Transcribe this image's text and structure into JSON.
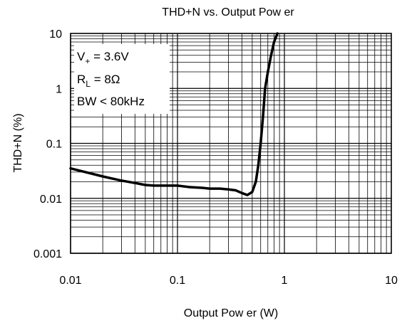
{
  "chart_data": {
    "type": "line",
    "title": "THD+N vs. Output Pow er",
    "xlabel": "Output Pow er (W)",
    "ylabel": "THD+N (%)",
    "xscale": "log",
    "yscale": "log",
    "xlim": [
      0.01,
      10
    ],
    "ylim": [
      0.001,
      10
    ],
    "grid": true,
    "x_ticks": [
      "0.01",
      "0.1",
      "1",
      "10"
    ],
    "y_ticks": [
      "10",
      "1",
      "0.1",
      "0.01",
      "0.001"
    ],
    "annotations": [
      {
        "main": "V",
        "sub": "+",
        "rest": " = 3.6V"
      },
      {
        "main": "R",
        "sub": "L",
        "rest": " = 8Ω"
      },
      {
        "main": "BW < 80kHz",
        "sub": "",
        "rest": ""
      }
    ],
    "series": [
      {
        "x": [
          0.01,
          0.02,
          0.03,
          0.04,
          0.05,
          0.06,
          0.08,
          0.1,
          0.13,
          0.17,
          0.2,
          0.25,
          0.3,
          0.35,
          0.4,
          0.45,
          0.5,
          0.54,
          0.57,
          0.6,
          0.63,
          0.66,
          0.7,
          0.75,
          0.8,
          0.86
        ],
        "y": [
          0.035,
          0.025,
          0.021,
          0.019,
          0.0175,
          0.017,
          0.017,
          0.017,
          0.016,
          0.0155,
          0.015,
          0.015,
          0.0145,
          0.014,
          0.0125,
          0.0115,
          0.013,
          0.02,
          0.04,
          0.1,
          0.3,
          1.0,
          2.0,
          4.0,
          7.0,
          10.0
        ]
      }
    ]
  }
}
